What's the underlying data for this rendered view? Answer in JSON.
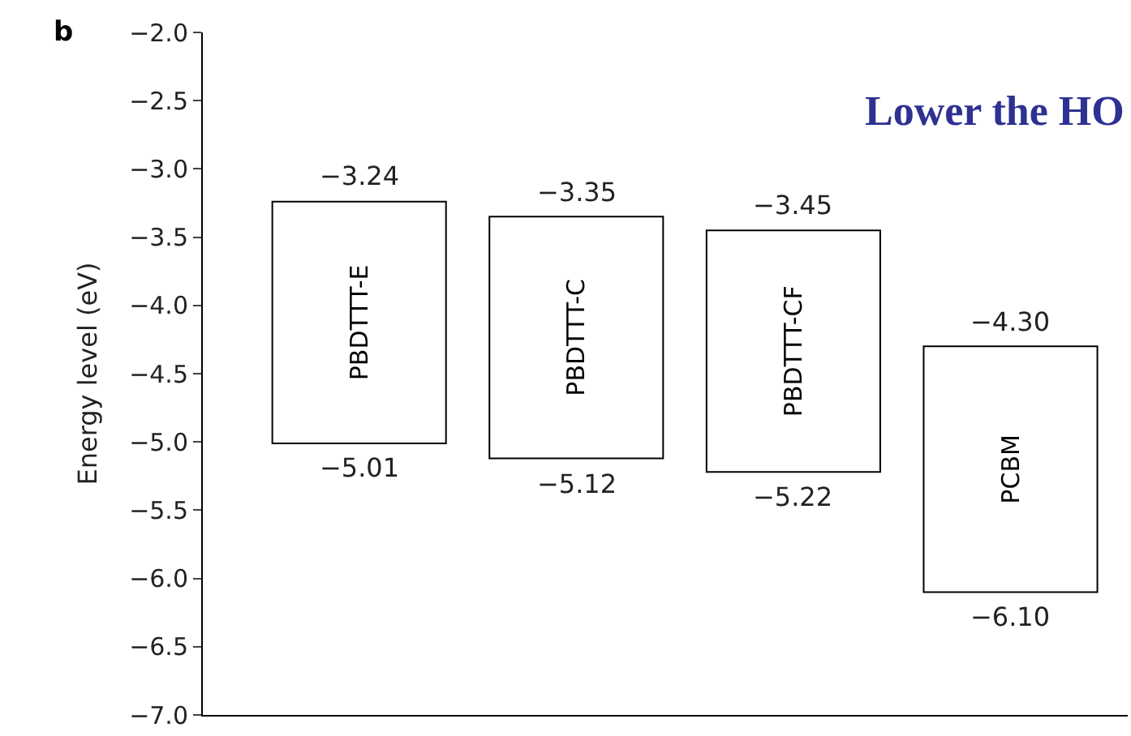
{
  "chart_data": {
    "type": "bar",
    "ylabel": "Energy level (eV)",
    "categories": [
      "PBDTTT-E",
      "PBDTTT-C",
      "PBDTTT-CF",
      "PCBM"
    ],
    "base": [
      -5.01,
      -5.12,
      -5.22,
      -6.1
    ],
    "values": [
      1.77,
      1.77,
      1.77,
      1.8
    ],
    "color": "#ffffff",
    "ylim": [
      -7.0,
      -2.0
    ],
    "yticks": [
      {
        "value": -2.0,
        "label": "−2.0"
      },
      {
        "value": -2.5,
        "label": "−2.5"
      },
      {
        "value": -3.0,
        "label": "−3.0"
      },
      {
        "value": -3.5,
        "label": "−3.5"
      },
      {
        "value": -4.0,
        "label": "−4.0"
      },
      {
        "value": -4.5,
        "label": "−4.5"
      },
      {
        "value": -5.0,
        "label": "−5.0"
      },
      {
        "value": -5.5,
        "label": "−5.5"
      },
      {
        "value": -6.0,
        "label": "−6.0"
      },
      {
        "value": -6.5,
        "label": "−6.5"
      },
      {
        "value": -7.0,
        "label": "−7.0"
      }
    ],
    "tick_labels": "y",
    "annotations": [
      "b",
      "Lower the HO",
      {
        "text": "−3.24",
        "x": "PBDTTT-E",
        "y": -3.24
      },
      {
        "text": "−5.01",
        "x": "PBDTTT-E",
        "y": -5.01
      },
      {
        "text": "−3.35",
        "x": "PBDTTT-C",
        "y": -3.35
      },
      {
        "text": "−5.12",
        "x": "PBDTTT-C",
        "y": -5.12
      },
      {
        "text": "−3.45",
        "x": "PBDTTT-CF",
        "y": -3.45
      },
      {
        "text": "−5.22",
        "x": "PBDTTT-CF",
        "y": -5.22
      },
      {
        "text": "−4.30",
        "x": "PCBM",
        "y": -4.3
      },
      {
        "text": "−6.10",
        "x": "PCBM",
        "y": -6.1
      }
    ]
  }
}
